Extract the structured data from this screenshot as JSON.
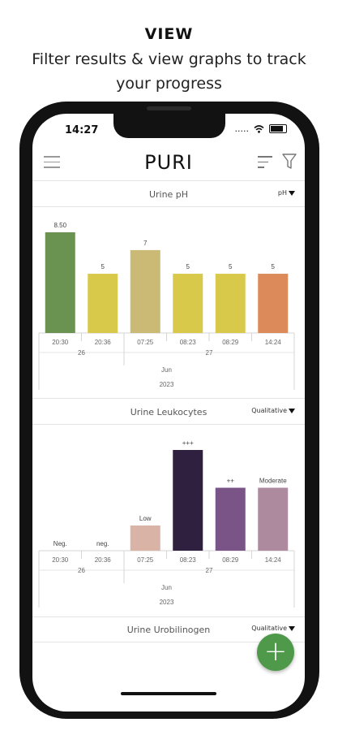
{
  "headline": {
    "title": "VIEW",
    "subtitle_line1": "Filter results & view graphs to track",
    "subtitle_line2": "your progress"
  },
  "status": {
    "time": "14:27",
    "signal": "....."
  },
  "app": {
    "logo": "PURI"
  },
  "sections": [
    {
      "title": "Urine pH",
      "dropdown": "pH",
      "chart_data": {
        "type": "bar",
        "categories": [
          "20:30",
          "20:36",
          "07:25",
          "08:23",
          "08:29",
          "14:24"
        ],
        "values": [
          8.5,
          5,
          7,
          5,
          5,
          5
        ],
        "data_labels": [
          "8.50",
          "5",
          "7",
          "5",
          "5",
          "5"
        ],
        "colors": [
          "#6a9251",
          "#d9c94a",
          "#cbb976",
          "#d9c94a",
          "#d9c94a",
          "#dd8a5a"
        ],
        "day_labels": [
          "26",
          "27"
        ],
        "month_label": "Jun",
        "year_label": "2023",
        "ylim": [
          0,
          8.5
        ]
      }
    },
    {
      "title": "Urine Leukocytes",
      "dropdown": "Qualitative",
      "chart_data": {
        "type": "bar",
        "categories": [
          "20:30",
          "20:36",
          "07:25",
          "08:23",
          "08:29",
          "14:24"
        ],
        "values": [
          0,
          0,
          1,
          4,
          2.5,
          2.5
        ],
        "data_labels": [
          "Neg.",
          "neg.",
          "Low",
          "+++",
          "++",
          "Moderate"
        ],
        "colors": [
          "#cccccc",
          "#cccccc",
          "#d9b3a6",
          "#30203f",
          "#7a5387",
          "#ae8a9e"
        ],
        "day_labels": [
          "26",
          "27"
        ],
        "month_label": "Jun",
        "year_label": "2023",
        "ylim": [
          0,
          4
        ]
      }
    },
    {
      "title": "Urine Urobilinogen",
      "dropdown": "Qualitative"
    }
  ],
  "fab_label": "+"
}
